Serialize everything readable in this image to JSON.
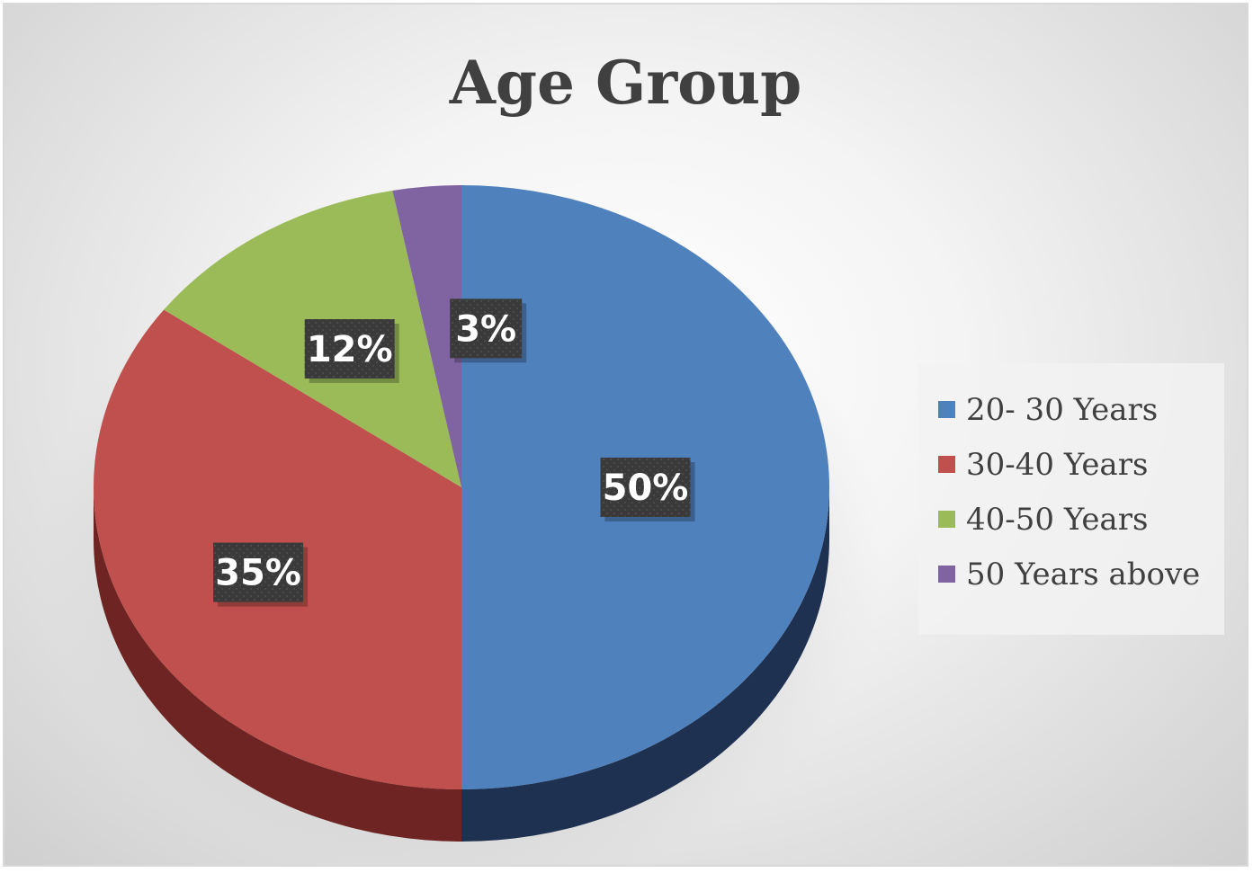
{
  "chart_data": {
    "type": "pie",
    "title": "Age Group",
    "categories": [
      "20- 30 Years",
      "30-40 Years",
      "40-50 Years",
      "50 Years above"
    ],
    "values": [
      50,
      35,
      12,
      3
    ],
    "data_labels": [
      "50%",
      "35%",
      "12%",
      "3%"
    ],
    "colors": [
      "#4f81bd",
      "#c0504d",
      "#9bbb59",
      "#8064a2"
    ],
    "side_colors": [
      "#1f3150",
      "#6e2422",
      "#55662f",
      "#473761"
    ],
    "legend_position": "right",
    "style": "3d"
  }
}
